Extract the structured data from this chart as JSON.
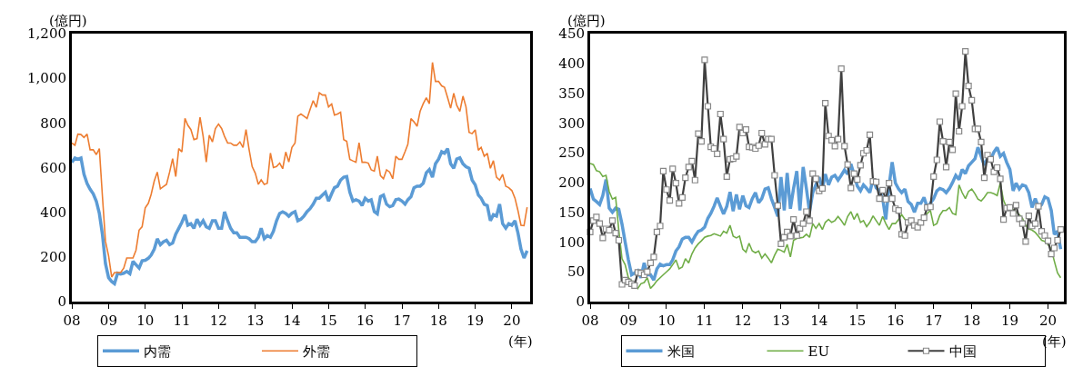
{
  "chart_data": [
    {
      "type": "line",
      "ylabel": "(億円)",
      "xlabel": "(年)",
      "legend": "bottom",
      "grid": false,
      "xlim": [
        "2008-01",
        "2020-07"
      ],
      "xticks": [
        {
          "value": "2008-01",
          "label": "08"
        },
        {
          "value": "2009-01",
          "label": "09"
        },
        {
          "value": "2010-01",
          "label": "10"
        },
        {
          "value": "2011-01",
          "label": "11"
        },
        {
          "value": "2012-01",
          "label": "12"
        },
        {
          "value": "2013-01",
          "label": "13"
        },
        {
          "value": "2014-01",
          "label": "14"
        },
        {
          "value": "2015-01",
          "label": "15"
        },
        {
          "value": "2016-01",
          "label": "16"
        },
        {
          "value": "2017-01",
          "label": "17"
        },
        {
          "value": "2018-01",
          "label": "18"
        },
        {
          "value": "2019-01",
          "label": "19"
        },
        {
          "value": "2020-01",
          "label": "20"
        }
      ],
      "ylim": [
        0,
        1200
      ],
      "yticks": [
        0,
        200,
        400,
        600,
        800,
        {
          "value": 1000,
          "label": "1,000"
        },
        {
          "value": 1200,
          "label": "1,200"
        }
      ],
      "x": [
        "2008-01",
        "2008-02",
        "2008-03",
        "2008-04",
        "2008-05",
        "2008-06",
        "2008-07",
        "2008-08",
        "2008-09",
        "2008-10",
        "2008-11",
        "2008-12",
        "2009-01",
        "2009-02",
        "2009-03",
        "2009-04",
        "2009-05",
        "2009-06",
        "2009-07",
        "2009-08",
        "2009-09",
        "2009-10",
        "2009-11",
        "2009-12",
        "2010-01",
        "2010-02",
        "2010-03",
        "2010-04",
        "2010-05",
        "2010-06",
        "2010-07",
        "2010-08",
        "2010-09",
        "2010-10",
        "2010-11",
        "2010-12",
        "2011-01",
        "2011-02",
        "2011-03",
        "2011-04",
        "2011-05",
        "2011-06",
        "2011-07",
        "2011-08",
        "2011-09",
        "2011-10",
        "2011-11",
        "2011-12",
        "2012-01",
        "2012-02",
        "2012-03",
        "2012-04",
        "2012-05",
        "2012-06",
        "2012-07",
        "2012-08",
        "2012-09",
        "2012-10",
        "2012-11",
        "2012-12",
        "2013-01",
        "2013-02",
        "2013-03",
        "2013-04",
        "2013-05",
        "2013-06",
        "2013-07",
        "2013-08",
        "2013-09",
        "2013-10",
        "2013-11",
        "2013-12",
        "2014-01",
        "2014-02",
        "2014-03",
        "2014-04",
        "2014-05",
        "2014-06",
        "2014-07",
        "2014-08",
        "2014-09",
        "2014-10",
        "2014-11",
        "2014-12",
        "2015-01",
        "2015-02",
        "2015-03",
        "2015-04",
        "2015-05",
        "2015-06",
        "2015-07",
        "2015-08",
        "2015-09",
        "2015-10",
        "2015-11",
        "2015-12",
        "2016-01",
        "2016-02",
        "2016-03",
        "2016-04",
        "2016-05",
        "2016-06",
        "2016-07",
        "2016-08",
        "2016-09",
        "2016-10",
        "2016-11",
        "2016-12",
        "2017-01",
        "2017-02",
        "2017-03",
        "2017-04",
        "2017-05",
        "2017-06",
        "2017-07",
        "2017-08",
        "2017-09",
        "2017-10",
        "2017-11",
        "2017-12",
        "2018-01",
        "2018-02",
        "2018-03",
        "2018-04",
        "2018-05",
        "2018-06",
        "2018-07",
        "2018-08",
        "2018-09",
        "2018-10",
        "2018-11",
        "2018-12",
        "2019-01",
        "2019-02",
        "2019-03",
        "2019-04",
        "2019-05",
        "2019-06",
        "2019-07",
        "2019-08",
        "2019-09",
        "2019-10",
        "2019-11",
        "2019-12",
        "2020-01",
        "2020-02",
        "2020-03",
        "2020-04",
        "2020-05",
        "2020-06"
      ],
      "series": [
        {
          "name": "内需",
          "color": "#5b9bd5",
          "values": [
            623,
            643,
            637,
            643,
            570,
            529,
            503,
            483,
            449,
            395,
            300,
            170,
            107,
            90,
            80,
            127,
            123,
            127,
            135,
            125,
            180,
            165,
            150,
            183,
            185,
            194,
            208,
            235,
            281,
            255,
            268,
            275,
            255,
            262,
            302,
            328,
            355,
            389,
            342,
            349,
            328,
            369,
            342,
            362,
            335,
            328,
            362,
            362,
            328,
            328,
            402,
            362,
            328,
            308,
            308,
            288,
            288,
            288,
            282,
            268,
            268,
            288,
            328,
            282,
            295,
            288,
            315,
            362,
            395,
            402,
            395,
            382,
            396,
            403,
            362,
            369,
            383,
            403,
            416,
            436,
            463,
            463,
            477,
            490,
            450,
            483,
            510,
            517,
            544,
            557,
            560,
            490,
            450,
            456,
            450,
            430,
            463,
            450,
            456,
            403,
            393,
            470,
            477,
            436,
            425,
            430,
            456,
            459,
            450,
            436,
            456,
            470,
            510,
            517,
            517,
            530,
            577,
            591,
            557,
            617,
            638,
            671,
            664,
            685,
            617,
            597,
            638,
            644,
            617,
            604,
            597,
            544,
            523,
            477,
            463,
            436,
            430,
            362,
            389,
            383,
            436,
            349,
            329,
            349,
            342,
            362,
            309,
            235,
            195,
            228
          ]
        },
        {
          "name": "外需",
          "color": "#ed7d31",
          "values": [
            710,
            700,
            750,
            748,
            735,
            750,
            680,
            680,
            658,
            685,
            470,
            270,
            205,
            110,
            130,
            130,
            130,
            150,
            195,
            195,
            195,
            230,
            320,
            335,
            420,
            440,
            480,
            540,
            580,
            505,
            515,
            525,
            580,
            640,
            560,
            685,
            670,
            820,
            790,
            770,
            725,
            730,
            825,
            740,
            625,
            745,
            715,
            775,
            795,
            775,
            740,
            710,
            710,
            700,
            700,
            715,
            690,
            770,
            680,
            605,
            575,
            525,
            545,
            525,
            530,
            665,
            600,
            605,
            620,
            595,
            670,
            625,
            690,
            710,
            830,
            840,
            830,
            820,
            860,
            900,
            870,
            935,
            925,
            925,
            872,
            885,
            835,
            840,
            848,
            725,
            718,
            637,
            630,
            624,
            711,
            624,
            624,
            620,
            590,
            584,
            651,
            564,
            550,
            590,
            580,
            550,
            651,
            637,
            637,
            671,
            705,
            819,
            805,
            785,
            852,
            886,
            913,
            886,
            1071,
            986,
            986,
            966,
            960,
            913,
            866,
            933,
            879,
            852,
            920,
            872,
            758,
            752,
            769,
            678,
            691,
            651,
            664,
            597,
            631,
            557,
            544,
            570,
            517,
            510,
            497,
            463,
            409,
            342,
            340,
            423
          ]
        }
      ]
    },
    {
      "type": "line",
      "ylabel": "(億円)",
      "xlabel": "(年)",
      "legend": "bottom",
      "grid": false,
      "xlim": [
        "2008-01",
        "2020-06"
      ],
      "xticks": [
        {
          "value": "2008-01",
          "label": "08"
        },
        {
          "value": "2009-01",
          "label": "09"
        },
        {
          "value": "2010-01",
          "label": "10"
        },
        {
          "value": "2011-01",
          "label": "11"
        },
        {
          "value": "2012-01",
          "label": "12"
        },
        {
          "value": "2013-01",
          "label": "13"
        },
        {
          "value": "2014-01",
          "label": "14"
        },
        {
          "value": "2015-01",
          "label": "15"
        },
        {
          "value": "2016-01",
          "label": "16"
        },
        {
          "value": "2017-01",
          "label": "17"
        },
        {
          "value": "2018-01",
          "label": "18"
        },
        {
          "value": "2019-01",
          "label": "19"
        },
        {
          "value": "2020-01",
          "label": "20"
        }
      ],
      "ylim": [
        0,
        450
      ],
      "yticks": [
        0,
        50,
        100,
        150,
        200,
        250,
        300,
        350,
        400,
        450
      ],
      "x": [
        "2008-01",
        "2008-02",
        "2008-03",
        "2008-04",
        "2008-05",
        "2008-06",
        "2008-07",
        "2008-08",
        "2008-09",
        "2008-10",
        "2008-11",
        "2008-12",
        "2009-01",
        "2009-02",
        "2009-03",
        "2009-04",
        "2009-05",
        "2009-06",
        "2009-07",
        "2009-08",
        "2009-09",
        "2009-10",
        "2009-11",
        "2009-12",
        "2010-01",
        "2010-02",
        "2010-03",
        "2010-04",
        "2010-05",
        "2010-06",
        "2010-07",
        "2010-08",
        "2010-09",
        "2010-10",
        "2010-11",
        "2010-12",
        "2011-01",
        "2011-02",
        "2011-03",
        "2011-04",
        "2011-05",
        "2011-06",
        "2011-07",
        "2011-08",
        "2011-09",
        "2011-10",
        "2011-11",
        "2011-12",
        "2012-01",
        "2012-02",
        "2012-03",
        "2012-04",
        "2012-05",
        "2012-06",
        "2012-07",
        "2012-08",
        "2012-09",
        "2012-10",
        "2012-11",
        "2012-12",
        "2013-01",
        "2013-02",
        "2013-03",
        "2013-04",
        "2013-05",
        "2013-06",
        "2013-07",
        "2013-08",
        "2013-09",
        "2013-10",
        "2013-11",
        "2013-12",
        "2014-01",
        "2014-02",
        "2014-03",
        "2014-04",
        "2014-05",
        "2014-06",
        "2014-07",
        "2014-08",
        "2014-09",
        "2014-10",
        "2014-11",
        "2014-12",
        "2015-01",
        "2015-02",
        "2015-03",
        "2015-04",
        "2015-05",
        "2015-06",
        "2015-07",
        "2015-08",
        "2015-09",
        "2015-10",
        "2015-11",
        "2015-12",
        "2016-01",
        "2016-02",
        "2016-03",
        "2016-04",
        "2016-05",
        "2016-06",
        "2016-07",
        "2016-08",
        "2016-09",
        "2016-10",
        "2016-11",
        "2016-12",
        "2017-01",
        "2017-02",
        "2017-03",
        "2017-04",
        "2017-05",
        "2017-06",
        "2017-07",
        "2017-08",
        "2017-09",
        "2017-10",
        "2017-11",
        "2017-12",
        "2018-01",
        "2018-02",
        "2018-03",
        "2018-04",
        "2018-05",
        "2018-06",
        "2018-07",
        "2018-08",
        "2018-09",
        "2018-10",
        "2018-11",
        "2018-12",
        "2019-01",
        "2019-02",
        "2019-03",
        "2019-04",
        "2019-05",
        "2019-06",
        "2019-07",
        "2019-08",
        "2019-09",
        "2019-10",
        "2019-11",
        "2019-12",
        "2020-01",
        "2020-02",
        "2020-03",
        "2020-04",
        "2020-05"
      ],
      "series": [
        {
          "name": "米国",
          "color": "#5b9bd5",
          "values": [
            190,
            172,
            168,
            163,
            178,
            205,
            157,
            150,
            157,
            155,
            130,
            100,
            70,
            45,
            48,
            52,
            40,
            65,
            45,
            45,
            36,
            55,
            63,
            60,
            62,
            62,
            70,
            85,
            92,
            105,
            108,
            108,
            100,
            110,
            118,
            120,
            125,
            140,
            148,
            160,
            174,
            160,
            147,
            160,
            184,
            152,
            180,
            155,
            178,
            161,
            158,
            173,
            183,
            166,
            173,
            189,
            191,
            173,
            158,
            143,
            209,
            153,
            216,
            156,
            190,
            219,
            153,
            226,
            190,
            151,
            183,
            196,
            209,
            189,
            214,
            196,
            209,
            212,
            204,
            212,
            221,
            214,
            231,
            214,
            194,
            186,
            196,
            190,
            183,
            206,
            191,
            186,
            173,
            138,
            194,
            234,
            199,
            189,
            183,
            189,
            168,
            163,
            150,
            165,
            165,
            175,
            158,
            165,
            173,
            186,
            190,
            188,
            183,
            190,
            200,
            212,
            205,
            222,
            215,
            228,
            234,
            240,
            259,
            244,
            229,
            241,
            239,
            251,
            259,
            244,
            249,
            234,
            222,
            186,
            199,
            189,
            196,
            194,
            183,
            158,
            173,
            158,
            163,
            176,
            173,
            153,
            113,
            118,
            88
          ]
        },
        {
          "name": "EU",
          "color": "#70ad47",
          "values": [
            232,
            230,
            220,
            218,
            210,
            212,
            185,
            172,
            175,
            120,
            72,
            62,
            40,
            35,
            30,
            22,
            30,
            32,
            40,
            22,
            28,
            35,
            40,
            45,
            50,
            55,
            62,
            70,
            55,
            58,
            72,
            65,
            80,
            90,
            97,
            102,
            108,
            110,
            111,
            114,
            112,
            110,
            118,
            115,
            128,
            110,
            107,
            110,
            88,
            83,
            98,
            85,
            82,
            85,
            73,
            80,
            73,
            65,
            78,
            88,
            86,
            83,
            96,
            75,
            103,
            106,
            107,
            108,
            113,
            108,
            131,
            123,
            131,
            121,
            133,
            138,
            133,
            136,
            143,
            136,
            128,
            143,
            151,
            138,
            148,
            133,
            136,
            126,
            133,
            144,
            136,
            128,
            143,
            131,
            121,
            131,
            131,
            138,
            146,
            138,
            136,
            133,
            131,
            131,
            133,
            140,
            148,
            153,
            128,
            131,
            145,
            153,
            153,
            158,
            148,
            146,
            196,
            183,
            173,
            185,
            189,
            181,
            172,
            169,
            175,
            183,
            183,
            181,
            178,
            199,
            170,
            158,
            158,
            155,
            151,
            146,
            140,
            128,
            122,
            120,
            116,
            110,
            103,
            101,
            96,
            88,
            68,
            48,
            40
          ]
        },
        {
          "name": "中国",
          "color": "#404040",
          "marker": "square",
          "values": [
            117,
            136,
            142,
            131,
            107,
            122,
            120,
            136,
            115,
            103,
            29,
            36,
            33,
            30,
            27,
            49,
            48,
            45,
            50,
            65,
            75,
            117,
            127,
            219,
            188,
            170,
            223,
            199,
            165,
            175,
            208,
            226,
            236,
            204,
            282,
            269,
            406,
            328,
            260,
            257,
            248,
            315,
            273,
            210,
            239,
            240,
            244,
            293,
            283,
            289,
            260,
            259,
            257,
            262,
            283,
            264,
            273,
            273,
            212,
            161,
            97,
            108,
            117,
            110,
            138,
            111,
            123,
            131,
            151,
            136,
            215,
            206,
            186,
            190,
            333,
            278,
            271,
            261,
            273,
            391,
            261,
            230,
            191,
            215,
            205,
            229,
            249,
            254,
            280,
            202,
            201,
            173,
            187,
            172,
            199,
            173,
            156,
            153,
            113,
            111,
            133,
            136,
            128,
            125,
            133,
            141,
            158,
            159,
            210,
            238,
            302,
            269,
            226,
            268,
            255,
            349,
            286,
            328,
            420,
            362,
            338,
            290,
            290,
            268,
            208,
            246,
            239,
            218,
            225,
            206,
            138,
            157,
            158,
            148,
            162,
            139,
            131,
            101,
            144,
            127,
            131,
            160,
            118,
            111,
            102,
            80,
            90,
            103,
            121
          ]
        }
      ]
    }
  ]
}
